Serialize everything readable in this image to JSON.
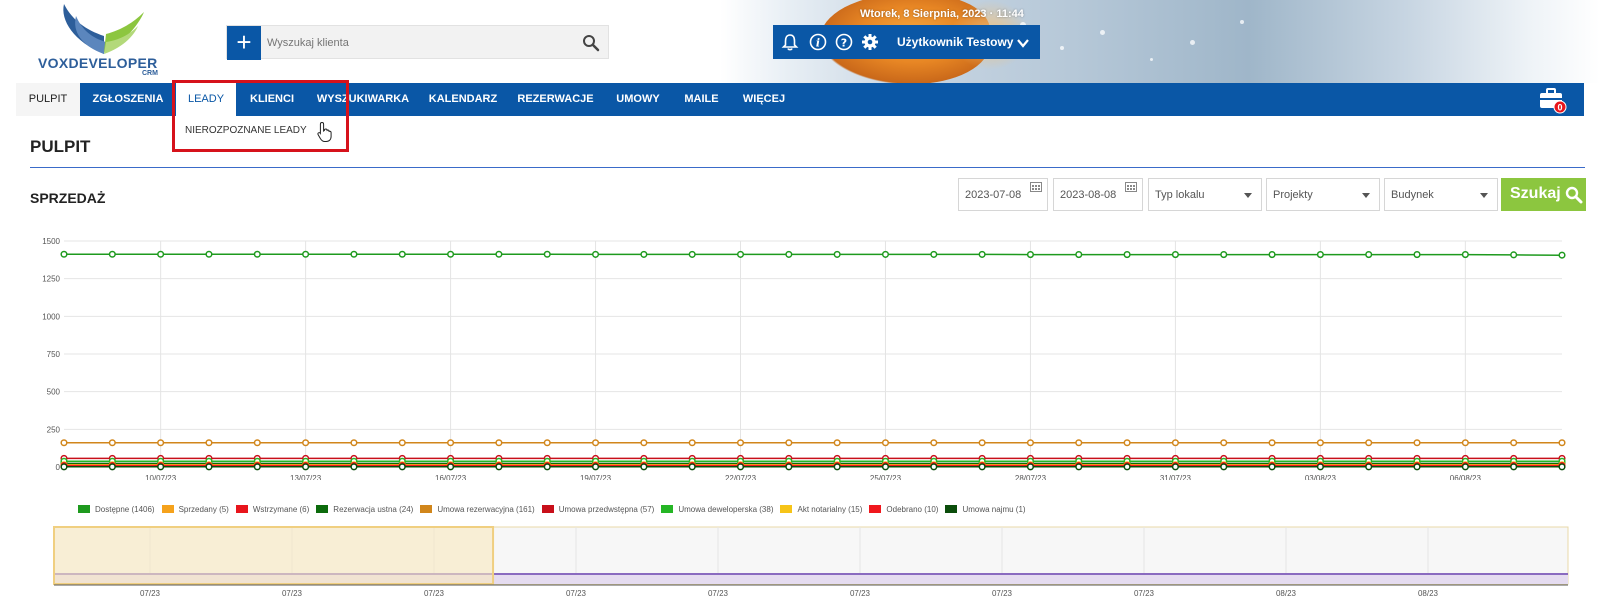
{
  "header": {
    "datetime": "Wtorek, 8 Sierpnia, 2023 · 11:44",
    "logo": {
      "name": "VOXDEVELOPER",
      "sub": "CRM"
    },
    "search": {
      "placeholder": "Wyszukaj klienta",
      "add_icon": "plus-icon",
      "search_icon": "magnifier-icon"
    },
    "user": {
      "name": "Użytkownik Testowy",
      "icons": [
        "bell-icon",
        "info-icon",
        "help-icon",
        "gear-icon",
        "chevron-down-icon"
      ]
    }
  },
  "nav": {
    "items": [
      {
        "label": "PULPIT"
      },
      {
        "label": "ZGŁOSZENIA"
      },
      {
        "label": "LEADY"
      },
      {
        "label": "KLIENCI"
      },
      {
        "label": "WYSZUKIWARKA"
      },
      {
        "label": "KALENDARZ"
      },
      {
        "label": "REZERWACJE"
      },
      {
        "label": "UMOWY"
      },
      {
        "label": "MAILE"
      },
      {
        "label": "WIĘCEJ"
      }
    ],
    "active": "PULPIT",
    "open": "LEADY",
    "dropdown": {
      "items": [
        "NIEROZPOZNANE LEADY"
      ]
    },
    "briefcase_count": "0"
  },
  "page": {
    "title": "PULPIT"
  },
  "section": {
    "title": "SPRZEDAŻ"
  },
  "filters": {
    "date_from": "2023-07-08",
    "date_to": "2023-08-08",
    "typ_lokalu": "Typ lokalu",
    "projekty": "Projekty",
    "budynek": "Budynek",
    "search_label": "Szukaj"
  },
  "colors": {
    "brand": "#0a57a6",
    "accent": "#8cc63f",
    "highlight": "#d6121b"
  },
  "chart_data": {
    "type": "line",
    "x": [
      "08/07/23",
      "09/07/23",
      "10/07/23",
      "11/07/23",
      "12/07/23",
      "13/07/23",
      "14/07/23",
      "15/07/23",
      "16/07/23",
      "17/07/23",
      "18/07/23",
      "19/07/23",
      "20/07/23",
      "21/07/23",
      "22/07/23",
      "23/07/23",
      "24/07/23",
      "25/07/23",
      "26/07/23",
      "27/07/23",
      "28/07/23",
      "29/07/23",
      "30/07/23",
      "31/07/23",
      "01/08/23",
      "02/08/23",
      "03/08/23",
      "04/08/23",
      "05/08/23",
      "06/08/23",
      "07/08/23",
      "08/08/23"
    ],
    "xticks": [
      "10/07/23",
      "13/07/23",
      "16/07/23",
      "19/07/23",
      "22/07/23",
      "25/07/23",
      "28/07/23",
      "31/07/23",
      "03/08/23",
      "06/08/23"
    ],
    "yticks": [
      0,
      250,
      500,
      750,
      1000,
      1250,
      1500
    ],
    "ylim": [
      0,
      1500
    ],
    "grid": true,
    "legend_position": "bottom",
    "series": [
      {
        "name": "Dostępne (1406)",
        "color": "#1e9a1e",
        "values": [
          1412,
          1412,
          1412,
          1412,
          1412,
          1412,
          1412,
          1412,
          1412,
          1412,
          1412,
          1411,
          1411,
          1411,
          1411,
          1411,
          1411,
          1411,
          1411,
          1411,
          1410,
          1410,
          1410,
          1410,
          1410,
          1410,
          1410,
          1410,
          1410,
          1410,
          1408,
          1406
        ]
      },
      {
        "name": "Sprzedany (5)",
        "color": "#f5a21c",
        "values": [
          5,
          5,
          5,
          5,
          5,
          5,
          5,
          5,
          5,
          5,
          5,
          5,
          5,
          5,
          5,
          5,
          5,
          5,
          5,
          5,
          5,
          5,
          5,
          5,
          5,
          5,
          5,
          5,
          5,
          5,
          5,
          5
        ]
      },
      {
        "name": "Wstrzymane (6)",
        "color": "#e8151c",
        "values": [
          6,
          6,
          6,
          6,
          6,
          6,
          6,
          6,
          6,
          6,
          6,
          6,
          6,
          6,
          6,
          6,
          6,
          6,
          6,
          6,
          6,
          6,
          6,
          6,
          6,
          6,
          6,
          6,
          6,
          6,
          6,
          6
        ]
      },
      {
        "name": "Rezerwacja ustna (24)",
        "color": "#0c6b0c",
        "values": [
          24,
          24,
          24,
          24,
          24,
          24,
          24,
          24,
          24,
          24,
          24,
          24,
          24,
          24,
          24,
          24,
          24,
          24,
          24,
          24,
          24,
          24,
          24,
          24,
          24,
          24,
          24,
          24,
          24,
          24,
          24,
          24
        ]
      },
      {
        "name": "Umowa rezerwacyjna (161)",
        "color": "#d1861b",
        "values": [
          161,
          161,
          161,
          161,
          161,
          161,
          161,
          161,
          161,
          161,
          161,
          161,
          161,
          161,
          161,
          161,
          161,
          161,
          161,
          161,
          161,
          161,
          161,
          161,
          161,
          161,
          161,
          161,
          161,
          161,
          161,
          161
        ]
      },
      {
        "name": "Umowa przedwstępna (57)",
        "color": "#c80f1a",
        "values": [
          57,
          57,
          57,
          57,
          57,
          57,
          57,
          57,
          57,
          57,
          57,
          57,
          57,
          57,
          57,
          57,
          57,
          57,
          57,
          57,
          57,
          57,
          57,
          57,
          57,
          57,
          57,
          57,
          57,
          57,
          57,
          57
        ]
      },
      {
        "name": "Umowa deweloperska (38)",
        "color": "#25b625",
        "values": [
          38,
          38,
          38,
          38,
          38,
          38,
          38,
          38,
          38,
          38,
          38,
          38,
          38,
          38,
          38,
          38,
          38,
          38,
          38,
          38,
          38,
          38,
          38,
          38,
          38,
          38,
          38,
          38,
          38,
          38,
          38,
          38
        ]
      },
      {
        "name": "Akt notarialny (15)",
        "color": "#f6c418",
        "values": [
          15,
          15,
          15,
          15,
          15,
          15,
          15,
          15,
          15,
          15,
          15,
          15,
          15,
          15,
          15,
          15,
          15,
          15,
          15,
          15,
          15,
          15,
          15,
          15,
          15,
          15,
          15,
          15,
          15,
          15,
          15,
          15
        ]
      },
      {
        "name": "Odebrano (10)",
        "color": "#f0171d",
        "values": [
          10,
          10,
          10,
          10,
          10,
          10,
          10,
          10,
          10,
          10,
          10,
          10,
          10,
          10,
          10,
          10,
          10,
          10,
          10,
          10,
          10,
          10,
          10,
          10,
          10,
          10,
          10,
          10,
          10,
          10,
          10,
          10
        ]
      },
      {
        "name": "Umowa najmu (1)",
        "color": "#0b4d0b",
        "values": [
          1,
          1,
          1,
          1,
          1,
          1,
          1,
          1,
          1,
          1,
          1,
          1,
          1,
          1,
          1,
          1,
          1,
          1,
          1,
          1,
          1,
          1,
          1,
          1,
          1,
          1,
          1,
          1,
          1,
          1,
          1,
          1
        ]
      }
    ],
    "navigator": {
      "ticks": [
        "07/23",
        "07/23",
        "07/23",
        "07/23",
        "07/23",
        "07/23",
        "07/23",
        "07/23",
        "08/23",
        "08/23"
      ],
      "selected_fraction": [
        0,
        0.29
      ]
    }
  }
}
